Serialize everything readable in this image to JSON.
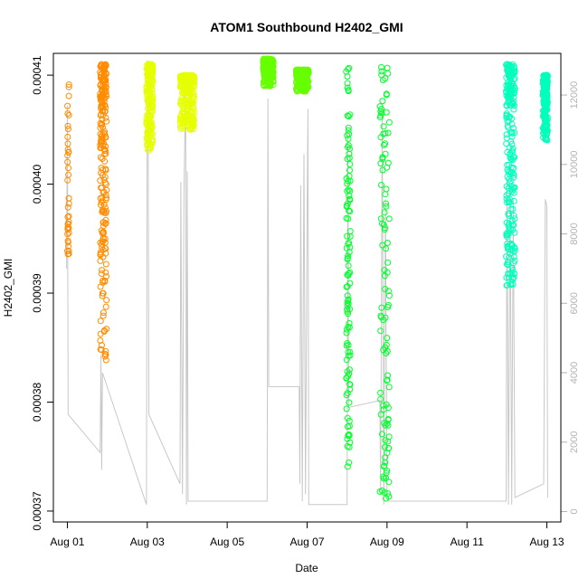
{
  "chart_data": {
    "type": "scatter",
    "title": "ATOM1 Southbound H2402_GMI",
    "xlabel": "Date",
    "ylabel": "H2402_GMI",
    "x_ticks": [
      {
        "day": 1,
        "label": "Aug 01"
      },
      {
        "day": 3,
        "label": "Aug 03"
      },
      {
        "day": 5,
        "label": "Aug 05"
      },
      {
        "day": 7,
        "label": "Aug 07"
      },
      {
        "day": 9,
        "label": "Aug 09"
      },
      {
        "day": 11,
        "label": "Aug 11"
      },
      {
        "day": 13,
        "label": "Aug 13"
      }
    ],
    "xlim": [
      0.65,
      13.35
    ],
    "ylim": [
      0.000369,
      0.000412
    ],
    "y_ticks": [
      {
        "value": 0.00037,
        "label": "0.00037"
      },
      {
        "value": 0.00038,
        "label": "0.00038"
      },
      {
        "value": 0.00039,
        "label": "0.00039"
      },
      {
        "value": 0.0004,
        "label": "0.00040"
      },
      {
        "value": 0.00041,
        "label": "0.00041"
      }
    ],
    "y2lim": [
      -300,
      13200
    ],
    "y2_ticks": [
      {
        "value": 0,
        "label": "0"
      },
      {
        "value": 2000,
        "label": "2000"
      },
      {
        "value": 4000,
        "label": "4000"
      },
      {
        "value": 6000,
        "label": "6000"
      },
      {
        "value": 8000,
        "label": "8000"
      },
      {
        "value": 10000,
        "label": "10000"
      },
      {
        "value": 12000,
        "label": "12000"
      }
    ],
    "grid": false,
    "marker": "open-circle",
    "colors": {
      "orange": "#ff8c00",
      "yellow": "#e6ff00",
      "lime": "#66ff00",
      "green": "#00ff2a",
      "aqua": "#00ffbb",
      "gray_line": "#c8c8c8",
      "right_axis": "#b3b3b3"
    },
    "point_groups": [
      {
        "color": "#ff8c00",
        "x_start": 1.0,
        "x_end": 1.04,
        "y_min": 0.000393,
        "y_max": 0.00041,
        "density": "sparse"
      },
      {
        "color": "#ff8c00",
        "x_start": 1.82,
        "x_end": 1.98,
        "y_min": 0.0003835,
        "y_max": 0.000411,
        "density": "dense"
      },
      {
        "color": "#e6ff00",
        "x_start": 2.98,
        "x_end": 3.14,
        "y_min": 0.000403,
        "y_max": 0.000411,
        "density": "dense"
      },
      {
        "color": "#e6ff00",
        "x_start": 3.82,
        "x_end": 4.18,
        "y_min": 0.000405,
        "y_max": 0.00041,
        "density": "dense"
      },
      {
        "color": "#66ff00",
        "x_start": 5.9,
        "x_end": 6.16,
        "y_min": 0.000409,
        "y_max": 0.0004115,
        "density": "dense"
      },
      {
        "color": "#66ff00",
        "x_start": 6.72,
        "x_end": 7.04,
        "y_min": 0.0004085,
        "y_max": 0.0004105,
        "density": "dense"
      },
      {
        "color": "#00ff2a",
        "x_start": 7.98,
        "x_end": 8.08,
        "y_min": 0.000373,
        "y_max": 0.000411,
        "density": "medium"
      },
      {
        "color": "#00ff2a",
        "x_start": 8.82,
        "x_end": 9.06,
        "y_min": 0.000371,
        "y_max": 0.000411,
        "density": "medium"
      },
      {
        "color": "#00ffbb",
        "x_start": 11.98,
        "x_end": 12.2,
        "y_min": 0.00039,
        "y_max": 0.000411,
        "density": "dense"
      },
      {
        "color": "#00ffbb",
        "x_start": 12.9,
        "x_end": 13.02,
        "y_min": 0.000404,
        "y_max": 0.00041,
        "density": "dense"
      }
    ],
    "gray_line_y2": [
      [
        0.98,
        7000
      ],
      [
        1.0,
        11700
      ],
      [
        1.02,
        2800
      ],
      [
        1.82,
        1700
      ],
      [
        1.84,
        4500
      ],
      [
        1.86,
        1200
      ],
      [
        1.88,
        4000
      ],
      [
        2.98,
        200
      ],
      [
        3.0,
        13000
      ],
      [
        3.02,
        12300
      ],
      [
        3.04,
        2800
      ],
      [
        3.82,
        800
      ],
      [
        3.84,
        9500
      ],
      [
        3.88,
        500
      ],
      [
        3.92,
        9200
      ],
      [
        3.96,
        12300
      ],
      [
        3.98,
        200
      ],
      [
        4.0,
        9800
      ],
      [
        4.02,
        300
      ],
      [
        6.0,
        300
      ],
      [
        6.02,
        11900
      ],
      [
        6.04,
        3600
      ],
      [
        6.8,
        3600
      ],
      [
        6.82,
        800
      ],
      [
        6.84,
        9400
      ],
      [
        6.88,
        300
      ],
      [
        6.92,
        10300
      ],
      [
        6.96,
        500
      ],
      [
        7.0,
        8500
      ],
      [
        7.02,
        11600
      ],
      [
        7.04,
        200
      ],
      [
        8.0,
        200
      ],
      [
        8.02,
        11000
      ],
      [
        8.04,
        3000
      ],
      [
        8.82,
        3200
      ],
      [
        8.84,
        500
      ],
      [
        8.88,
        11500
      ],
      [
        8.92,
        200
      ],
      [
        8.96,
        9000
      ],
      [
        9.0,
        500
      ],
      [
        9.04,
        300
      ],
      [
        11.98,
        300
      ],
      [
        12.0,
        9500
      ],
      [
        12.04,
        200
      ],
      [
        12.08,
        9200
      ],
      [
        12.12,
        200
      ],
      [
        12.16,
        9000
      ],
      [
        12.2,
        400
      ],
      [
        12.92,
        800
      ],
      [
        12.96,
        9000
      ],
      [
        13.0,
        8800
      ],
      [
        13.02,
        400
      ]
    ]
  }
}
